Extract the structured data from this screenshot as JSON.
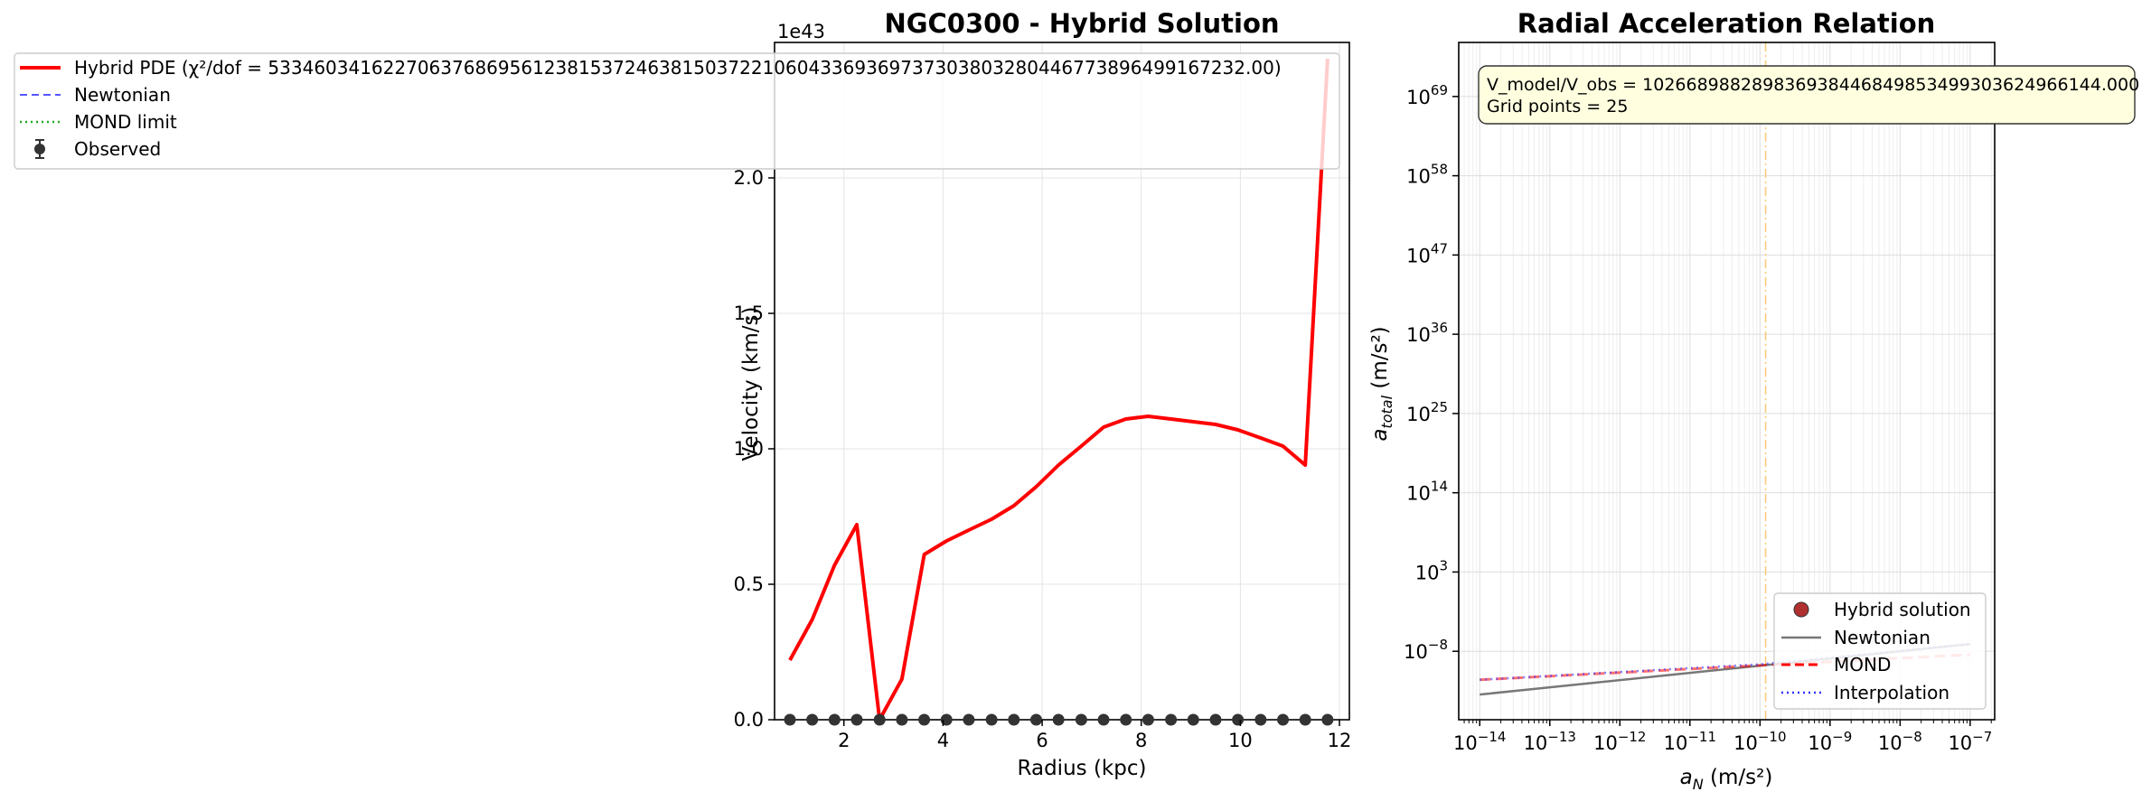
{
  "chart_data": [
    {
      "type": "line",
      "title": "NGC0300 - Hybrid Solution",
      "xlabel": "Radius (kpc)",
      "ylabel": "Velocity (km/s)",
      "y_offset_label": "1e43",
      "xlim": [
        0.6,
        12.2
      ],
      "ylim": [
        0,
        2.5
      ],
      "y_scale_factor": 1e+43,
      "grid": true,
      "legend_position": "upper-left",
      "xticks": [
        2,
        4,
        6,
        8,
        10,
        12
      ],
      "yticks": [
        0.0,
        0.5,
        1.0,
        1.5,
        2.0
      ],
      "legend": [
        {
          "label": "Hybrid PDE (χ²/dof = 533460341622706376869561238153724638150372210604336936973730380328044677389649916723​2.00)",
          "style": "solid",
          "color": "#ff0000"
        },
        {
          "label": "Newtonian",
          "style": "dashed",
          "color": "#5555ff"
        },
        {
          "label": "MOND limit",
          "style": "dotted",
          "color": "#22aa22"
        },
        {
          "label": "Observed",
          "style": "errorbar",
          "color": "#333333"
        }
      ],
      "series": [
        {
          "name": "Hybrid PDE",
          "color": "#ff0000",
          "x": [
            0.91,
            1.36,
            1.81,
            2.26,
            2.72,
            3.17,
            3.62,
            4.07,
            4.52,
            4.98,
            5.43,
            5.88,
            6.33,
            6.79,
            7.24,
            7.69,
            8.14,
            8.6,
            9.05,
            9.5,
            9.95,
            10.41,
            10.86,
            11.31,
            11.76
          ],
          "y": [
            0.22,
            0.37,
            0.57,
            0.72,
            0.0,
            0.15,
            0.61,
            0.66,
            0.7,
            0.74,
            0.79,
            0.86,
            0.94,
            1.01,
            1.08,
            1.11,
            1.12,
            1.11,
            1.1,
            1.09,
            1.07,
            1.04,
            1.01,
            0.94,
            2.44
          ]
        },
        {
          "name": "Observed",
          "color": "#333333",
          "x": [
            0.91,
            1.36,
            1.81,
            2.26,
            2.72,
            3.17,
            3.62,
            4.07,
            4.52,
            4.98,
            5.43,
            5.88,
            6.33,
            6.79,
            7.24,
            7.69,
            8.14,
            8.6,
            9.05,
            9.5,
            9.95,
            10.41,
            10.86,
            11.31,
            11.76
          ],
          "y": [
            0,
            0,
            0,
            0,
            0,
            0,
            0,
            0,
            0,
            0,
            0,
            0,
            0,
            0,
            0,
            0,
            0,
            0,
            0,
            0,
            0,
            0,
            0,
            0,
            0
          ]
        }
      ]
    },
    {
      "type": "line",
      "title": "Radial Acceleration Relation",
      "xlabel_base": "a",
      "xlabel_sub": "N",
      "xlabel_unit": " (m/s²)",
      "ylabel_base": "a",
      "ylabel_sub": "total",
      "ylabel_unit": " (m/s²)",
      "x_scale": "log",
      "y_scale": "log",
      "xlim_log10": [
        -14.3,
        -6.65
      ],
      "ylim_log10": [
        -17.5,
        76.5
      ],
      "grid": true,
      "xticks_exp": [
        "−14",
        "−13",
        "−12",
        "−11",
        "−10",
        "−9",
        "−8",
        "−7"
      ],
      "yticks_exp": [
        "−8",
        "3",
        "14",
        "25",
        "36",
        "47",
        "58",
        "69"
      ],
      "a0_log10": -9.92,
      "annotation": {
        "line1": "V_model/V_obs = 10266898828983693844684985349930362496614​4.000",
        "line2": "Grid points = 25"
      },
      "legend_position": "lower-right",
      "legend": [
        {
          "label": "Hybrid solution",
          "style": "marker",
          "color": "#b03030"
        },
        {
          "label": "Newtonian",
          "style": "solid",
          "color": "#777777"
        },
        {
          "label": "MOND",
          "style": "dashed",
          "color": "#ff0000"
        },
        {
          "label": "Interpolation",
          "style": "dotted",
          "color": "#3333ff"
        }
      ],
      "series": [
        {
          "name": "Newtonian",
          "color": "#777777",
          "x_log10": [
            -14,
            -7
          ],
          "y_log10": [
            -14,
            -7
          ]
        },
        {
          "name": "MOND",
          "color": "#ff0000",
          "x_log10": [
            -14,
            -10,
            -7
          ],
          "y_log10": [
            -11.96,
            -9.96,
            -8.46
          ]
        },
        {
          "name": "Interpolation",
          "color": "#3333ff",
          "x_log10": [
            -14,
            -10,
            -7
          ],
          "y_log10": [
            -11.96,
            -9.8,
            -7.0
          ]
        },
        {
          "name": "Hybrid solution",
          "color": "#b03030",
          "x_log10": [
            -11.3,
            -11.1,
            -10.9,
            -10.7,
            -10.5,
            -10.3
          ],
          "y_log10": [
            70.5,
            70.0,
            69.7,
            69.8,
            70.1,
            70.4
          ]
        }
      ]
    }
  ]
}
